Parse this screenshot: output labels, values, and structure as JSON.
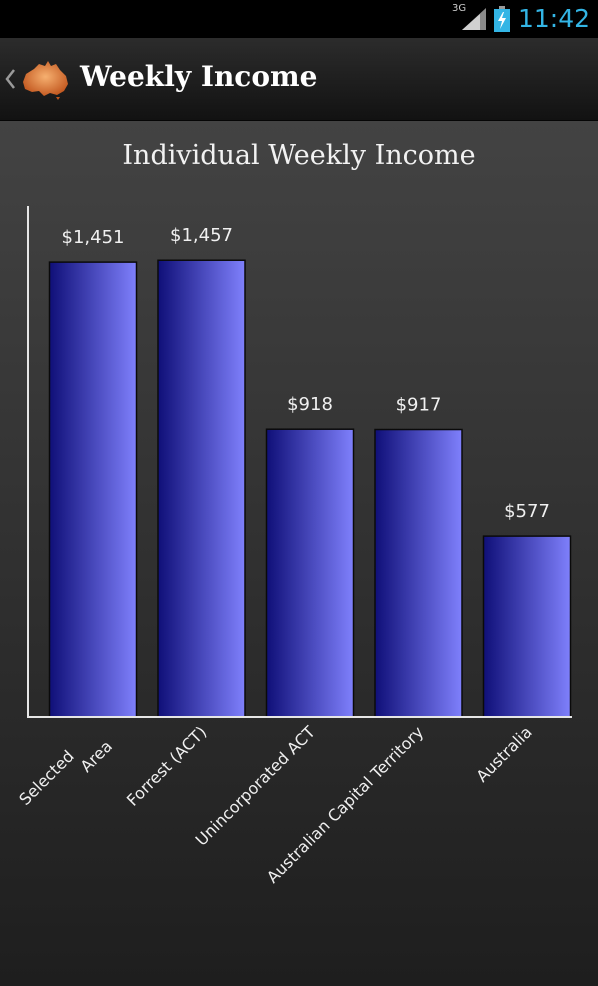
{
  "status_bar": {
    "network": "3G",
    "time": "11:42",
    "clock_color": "#33b5e5"
  },
  "action_bar": {
    "back_icon": "chevron-left-icon",
    "logo_icon": "australia-map-icon",
    "title": "Weekly Income"
  },
  "chart_data": {
    "type": "bar",
    "title": "Individual Weekly Income",
    "xlabel": "",
    "ylabel": "",
    "categories": [
      "Selected Area",
      "Forrest (ACT)",
      "Unincorporated ACT",
      "Australian Capital Territory",
      "Australia"
    ],
    "values": [
      1451,
      1457,
      918,
      917,
      577
    ],
    "data_labels": [
      "$1,451",
      "$1,457",
      "$918",
      "$917",
      "$577"
    ],
    "ylim": [
      0,
      1630
    ],
    "grid": false,
    "legend": "none",
    "bar_color_dark": "#0f0f78",
    "bar_color_light": "#7f80fc"
  }
}
